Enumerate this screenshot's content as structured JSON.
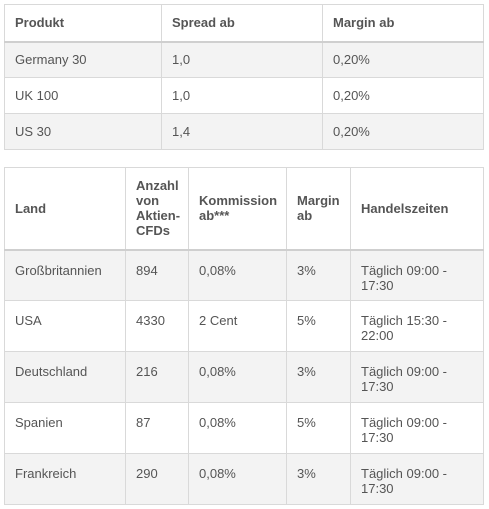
{
  "table1": {
    "headers": [
      "Produkt",
      "Spread ab",
      "Margin ab"
    ],
    "rows": [
      [
        "Germany 30",
        "1,0",
        "0,20%"
      ],
      [
        "UK 100",
        "1,0",
        "0,20%"
      ],
      [
        "US 30",
        "1,4",
        "0,20%"
      ]
    ]
  },
  "table2": {
    "headers": [
      "Land",
      "Anzahl von Aktien-CFDs",
      "Kommission ab***",
      "Margin ab",
      "Handelszeiten"
    ],
    "rows": [
      [
        "Großbritannien",
        "894",
        "0,08%",
        "3%",
        "Täglich 09:00 - 17:30"
      ],
      [
        "USA",
        "4330",
        "2 Cent",
        "5%",
        "Täglich 15:30 - 22:00"
      ],
      [
        "Deutschland",
        "216",
        "0,08%",
        "3%",
        "Täglich 09:00 - 17:30"
      ],
      [
        "Spanien",
        "87",
        "0,08%",
        "5%",
        "Täglich 09:00 - 17:30"
      ],
      [
        "Frankreich",
        "290",
        "0,08%",
        "3%",
        "Täglich 09:00 - 17:30"
      ]
    ]
  }
}
